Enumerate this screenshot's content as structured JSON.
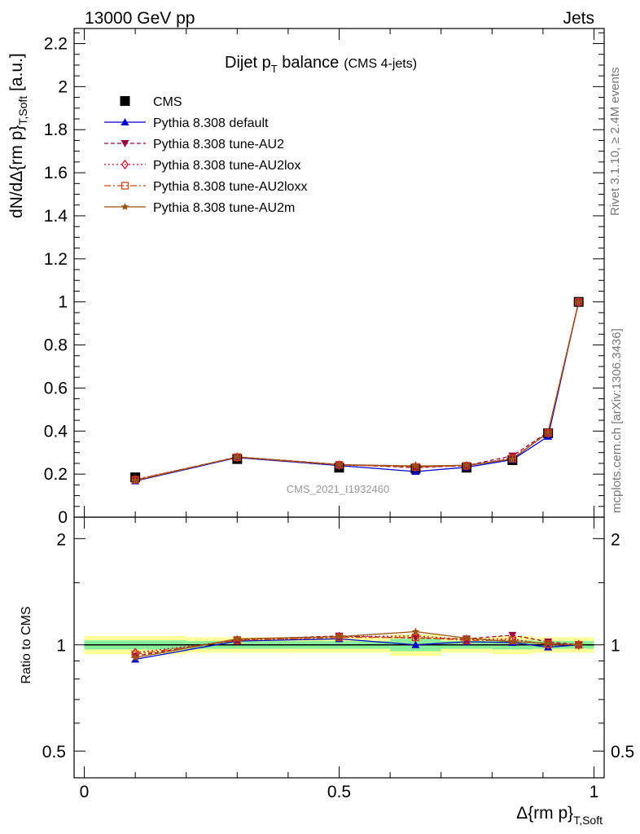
{
  "header": {
    "left": "13000 GeV pp",
    "right": "Jets"
  },
  "side_labels": {
    "rivet": "Rivet 3.1.10, ≥ 2.4M events",
    "mcplots": "mcplots.cern.ch [arXiv:1306.3436]"
  },
  "watermark": "CMS_2021_I1932460",
  "chart_data": [
    {
      "type": "line",
      "title_main": "Dijet p",
      "title_sub": "T",
      "title_rest": " balance",
      "title_note": "(CMS 4-jets)",
      "ylabel": "dN/dΔ{rm p}",
      "ylabel_sub": "T,Soft",
      "ylabel_unit": " [a.u.]",
      "xlim": [
        -0.02,
        1.02
      ],
      "ylim": [
        0,
        2.27
      ],
      "yticks": [
        0,
        0.2,
        0.4,
        0.6,
        0.8,
        1,
        1.2,
        1.4,
        1.6,
        1.8,
        2,
        2.2
      ],
      "ytick_labels": [
        "0",
        "0.2",
        "0.4",
        "0.6",
        "0.8",
        "1",
        "1.2",
        "1.4",
        "1.6",
        "1.8",
        "2",
        "2.2"
      ],
      "x": [
        0.1,
        0.3,
        0.5,
        0.65,
        0.75,
        0.84,
        0.91,
        0.97
      ],
      "series": [
        {
          "name": "CMS",
          "color": "#000000",
          "marker": "square",
          "dash": "",
          "values": [
            0.185,
            0.27,
            0.23,
            0.225,
            0.23,
            0.265,
            0.39,
            1.0
          ]
        },
        {
          "name": "Pythia 8.308 default",
          "color": "#0000cc",
          "marker": "triangle-up",
          "dash": "",
          "values": [
            0.168,
            0.277,
            0.24,
            0.212,
            0.232,
            0.267,
            0.375,
            1.0
          ]
        },
        {
          "name": "Pythia 8.308 tune-AU2",
          "color": "#990044",
          "marker": "triangle-down",
          "dash": "5,3",
          "values": [
            0.172,
            0.28,
            0.245,
            0.23,
            0.24,
            0.285,
            0.395,
            1.0
          ]
        },
        {
          "name": "Pythia 8.308 tune-AU2lox",
          "color": "#bb1133",
          "marker": "diamond-open",
          "dash": "2,3",
          "values": [
            0.175,
            0.278,
            0.242,
            0.235,
            0.238,
            0.275,
            0.39,
            1.0
          ]
        },
        {
          "name": "Pythia 8.308 tune-AU2loxx",
          "color": "#cc4411",
          "marker": "square-open",
          "dash": "8,3,2,3",
          "values": [
            0.174,
            0.279,
            0.243,
            0.233,
            0.239,
            0.272,
            0.392,
            1.0
          ]
        },
        {
          "name": "Pythia 8.308 tune-AU2m",
          "color": "#995511",
          "marker": "star",
          "dash": "",
          "values": [
            0.17,
            0.28,
            0.244,
            0.238,
            0.241,
            0.27,
            0.393,
            1.0
          ]
        }
      ]
    },
    {
      "type": "line",
      "ylabel": "Ratio to CMS",
      "xlabel": "Δ{rm p}",
      "xlabel_sub": "T,Soft",
      "xlim": [
        -0.02,
        1.02
      ],
      "ylim": [
        0.42,
        2.3
      ],
      "yscale": "log",
      "yticks": [
        0.5,
        1,
        2
      ],
      "ytick_labels": [
        "0.5",
        "1",
        "2"
      ],
      "xticks": [
        0,
        0.5,
        1
      ],
      "xtick_labels": [
        "0",
        "0.5",
        "1"
      ],
      "x": [
        0.1,
        0.3,
        0.5,
        0.65,
        0.75,
        0.84,
        0.91,
        0.97
      ],
      "bands": {
        "edges": [
          0,
          0.2,
          0.4,
          0.6,
          0.7,
          0.8,
          0.88,
          0.94,
          1.0
        ],
        "yellow_halfwidth": [
          0.06,
          0.05,
          0.05,
          0.07,
          0.05,
          0.06,
          0.05,
          0.05
        ],
        "green_halfwidth": [
          0.03,
          0.025,
          0.025,
          0.04,
          0.025,
          0.03,
          0.025,
          0.025
        ]
      },
      "series": [
        {
          "name": "Pythia 8.308 default",
          "values": [
            0.91,
            1.025,
            1.04,
            1.0,
            1.02,
            1.015,
            0.985,
            1.0
          ]
        },
        {
          "name": "Pythia 8.308 tune-AU2",
          "values": [
            0.93,
            1.035,
            1.06,
            1.045,
            1.04,
            1.065,
            1.02,
            1.0
          ]
        },
        {
          "name": "Pythia 8.308 tune-AU2lox",
          "values": [
            0.95,
            1.03,
            1.055,
            1.06,
            1.035,
            1.04,
            1.0,
            1.0
          ]
        },
        {
          "name": "Pythia 8.308 tune-AU2loxx",
          "values": [
            0.94,
            1.03,
            1.05,
            1.05,
            1.03,
            1.03,
            1.005,
            1.0
          ]
        },
        {
          "name": "Pythia 8.308 tune-AU2m",
          "values": [
            0.92,
            1.04,
            1.055,
            1.09,
            1.045,
            1.02,
            1.01,
            1.0
          ]
        }
      ]
    }
  ]
}
